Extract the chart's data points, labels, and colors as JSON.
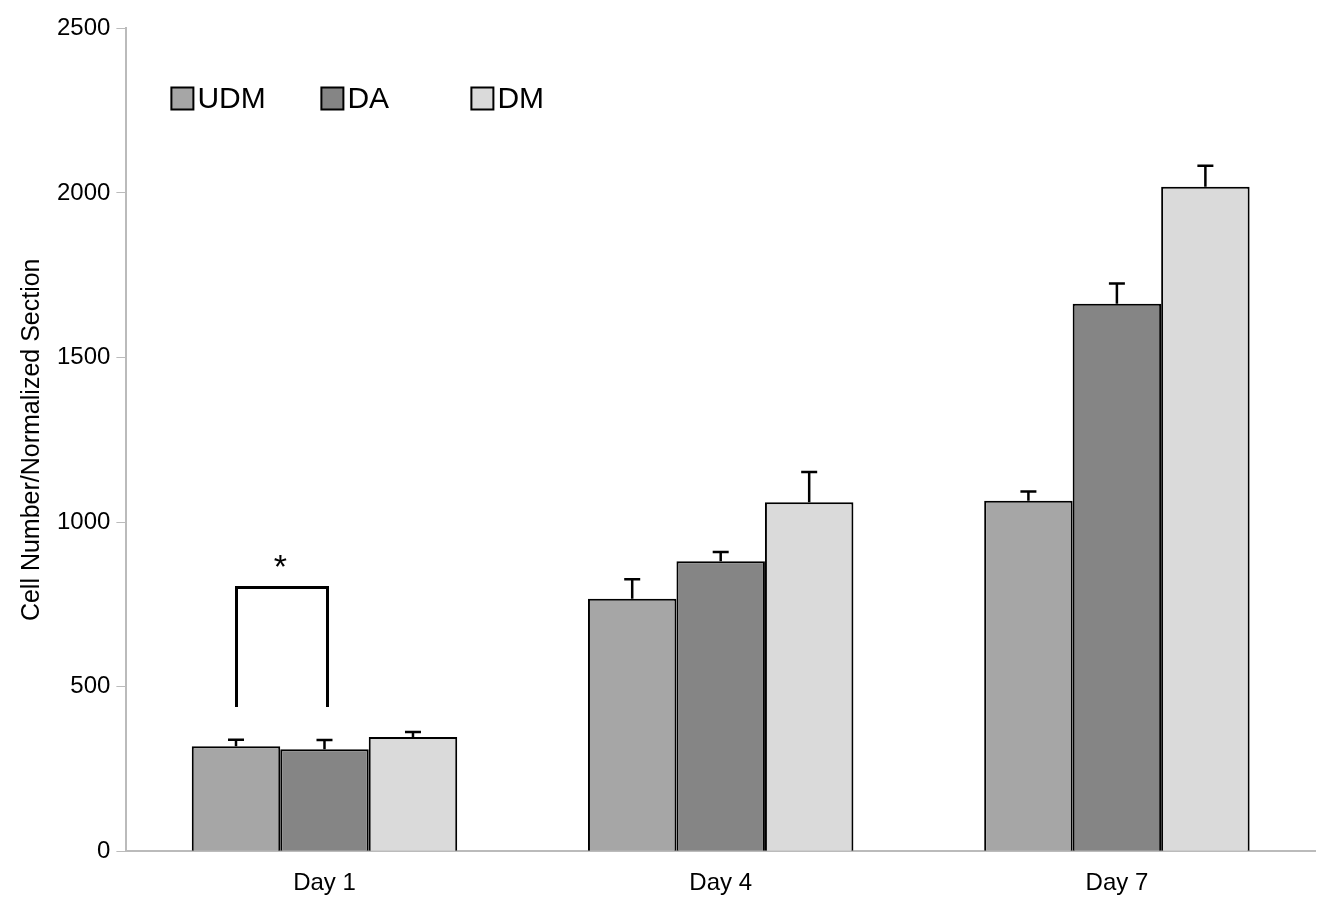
{
  "chart_data": {
    "type": "bar",
    "ylabel": "Cell Number/Normalized Section",
    "categories": [
      "Day 1",
      "Day 4",
      "Day 7"
    ],
    "series": [
      {
        "name": "UDM",
        "color": "#a6a6a6",
        "values": [
          319,
          767,
          1065
        ],
        "errors": [
          [
            319,
            339
          ],
          [
            767,
            826
          ],
          [
            1065,
            1093
          ]
        ]
      },
      {
        "name": "DA",
        "color": "#858585",
        "values": [
          310,
          881,
          1663
        ],
        "errors": [
          [
            310,
            338
          ],
          [
            881,
            909
          ],
          [
            1663,
            1725
          ]
        ]
      },
      {
        "name": "DM",
        "color": "#dadada",
        "values": [
          347,
          1060,
          2019
        ],
        "errors": [
          [
            347,
            362
          ],
          [
            1060,
            1152
          ],
          [
            2019,
            2083
          ]
        ]
      }
    ],
    "ylim": [
      0,
      2500
    ],
    "yticks": [
      0,
      500,
      1000,
      1500,
      2000,
      2500
    ],
    "grid": false,
    "legend": "top left",
    "annotations": [
      "*"
    ]
  }
}
